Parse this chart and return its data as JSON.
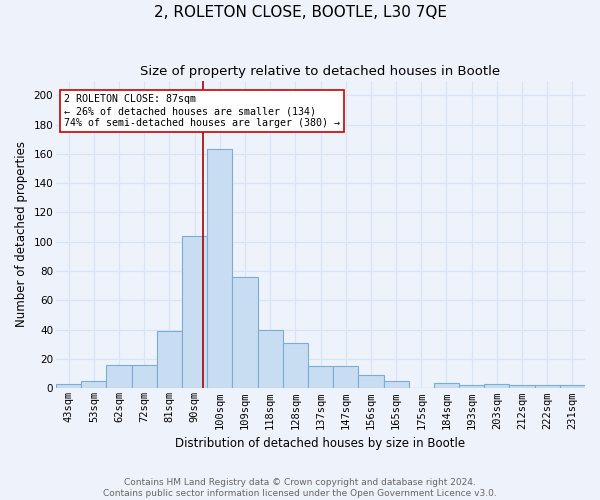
{
  "title": "2, ROLETON CLOSE, BOOTLE, L30 7QE",
  "subtitle": "Size of property relative to detached houses in Bootle",
  "xlabel": "Distribution of detached houses by size in Bootle",
  "ylabel": "Number of detached properties",
  "categories": [
    "43sqm",
    "53sqm",
    "62sqm",
    "72sqm",
    "81sqm",
    "90sqm",
    "100sqm",
    "109sqm",
    "118sqm",
    "128sqm",
    "137sqm",
    "147sqm",
    "156sqm",
    "165sqm",
    "175sqm",
    "184sqm",
    "193sqm",
    "203sqm",
    "212sqm",
    "222sqm",
    "231sqm"
  ],
  "values": [
    3,
    5,
    16,
    16,
    39,
    104,
    163,
    76,
    40,
    31,
    15,
    15,
    9,
    5,
    0,
    4,
    2,
    3,
    2,
    2,
    2
  ],
  "bar_color": "#c9ddf2",
  "bar_edge_color": "#7aadd4",
  "bg_color": "#edf2fb",
  "grid_color": "#d8e4f5",
  "vline_x_pos": 5.35,
  "vline_color": "#aa0000",
  "annotation_text": "2 ROLETON CLOSE: 87sqm\n← 26% of detached houses are smaller (134)\n74% of semi-detached houses are larger (380) →",
  "annotation_box_color": "#ffffff",
  "annotation_box_edge": "#cc0000",
  "footer_text": "Contains HM Land Registry data © Crown copyright and database right 2024.\nContains public sector information licensed under the Open Government Licence v3.0.",
  "ylim": [
    0,
    210
  ],
  "yticks": [
    0,
    20,
    40,
    60,
    80,
    100,
    120,
    140,
    160,
    180,
    200
  ],
  "title_fontsize": 11,
  "subtitle_fontsize": 9.5,
  "label_fontsize": 8.5,
  "tick_fontsize": 7.5,
  "footer_fontsize": 6.5
}
